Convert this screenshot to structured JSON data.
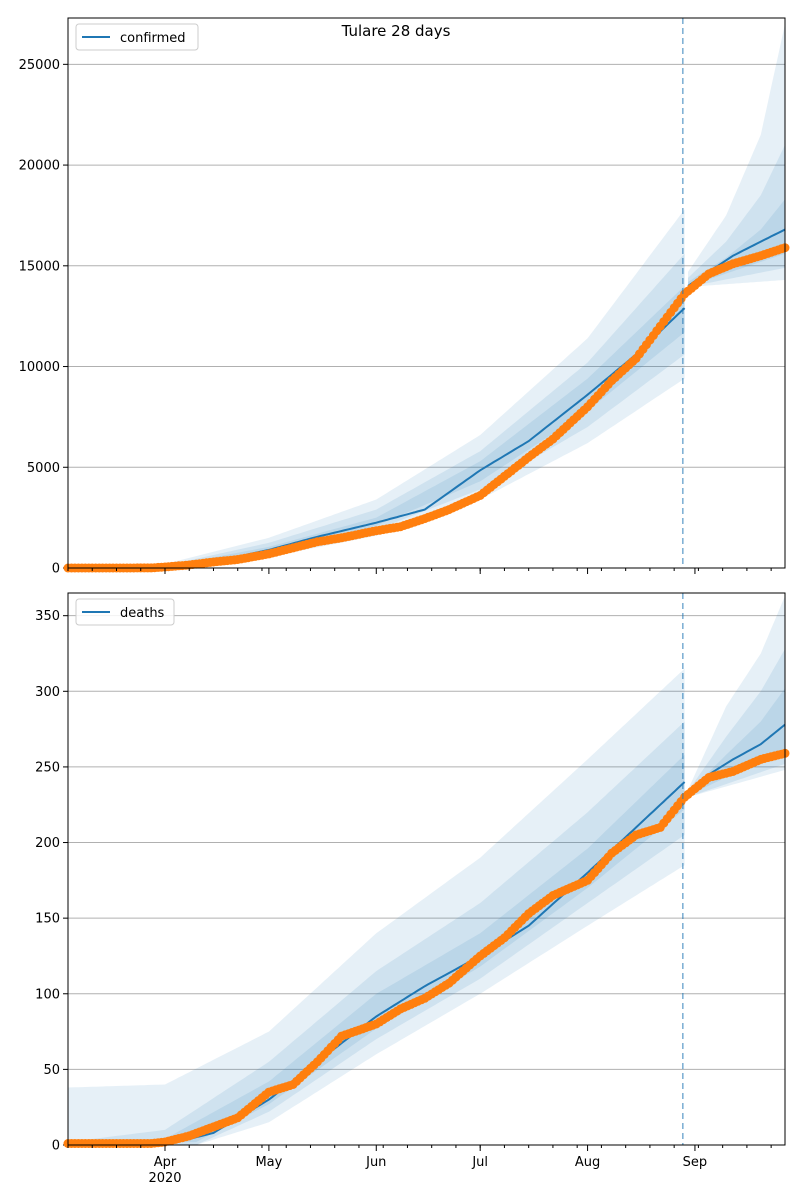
{
  "figure": {
    "title": "Tulare 28 days"
  },
  "colors": {
    "model_line": "#1f77b4",
    "observed": "#ff7f0e",
    "band": "#1f77b4",
    "grid": "#b0b0b0",
    "cutoff_line": "#1f77b4"
  },
  "chart_data": [
    {
      "type": "line",
      "title": "Tulare 28 days",
      "xlabel": "",
      "ylabel": "",
      "x_ticks": [
        {
          "date": "2020-04-01",
          "label": "Apr",
          "year_label": "2020"
        },
        {
          "date": "2020-05-01",
          "label": "May"
        },
        {
          "date": "2020-06-01",
          "label": "Jun"
        },
        {
          "date": "2020-07-01",
          "label": "Jul"
        },
        {
          "date": "2020-08-01",
          "label": "Aug"
        },
        {
          "date": "2020-09-01",
          "label": "Sep"
        }
      ],
      "x_range": [
        "2020-03-04",
        "2020-09-27"
      ],
      "ylim": [
        0,
        27300
      ],
      "y_ticks": [
        0,
        5000,
        10000,
        15000,
        20000,
        25000
      ],
      "grid": "horizontal",
      "legend": {
        "position": "top-left",
        "entries": [
          "confirmed"
        ]
      },
      "forecast_start": "2020-08-30",
      "series": [
        {
          "name": "confirmed",
          "kind": "model-median-line",
          "points": [
            [
              "2020-03-04",
              0
            ],
            [
              "2020-03-25",
              10
            ],
            [
              "2020-04-01",
              50
            ],
            [
              "2020-04-15",
              300
            ],
            [
              "2020-05-01",
              900
            ],
            [
              "2020-05-15",
              1550
            ],
            [
              "2020-06-01",
              2250
            ],
            [
              "2020-06-15",
              2900
            ],
            [
              "2020-07-01",
              4850
            ],
            [
              "2020-07-15",
              6300
            ],
            [
              "2020-08-01",
              8600
            ],
            [
              "2020-08-15",
              10600
            ],
            [
              "2020-08-29",
              12900
            ]
          ]
        },
        {
          "kind": "model-median-line-forecast",
          "points": [
            [
              "2020-08-30",
              14000
            ],
            [
              "2020-09-05",
              14700
            ],
            [
              "2020-09-12",
              15500
            ],
            [
              "2020-09-20",
              16200
            ],
            [
              "2020-09-27",
              16800
            ]
          ]
        },
        {
          "kind": "observed-points",
          "points": [
            [
              "2020-03-04",
              0
            ],
            [
              "2020-03-20",
              0
            ],
            [
              "2020-03-28",
              5
            ],
            [
              "2020-04-01",
              50
            ],
            [
              "2020-04-08",
              150
            ],
            [
              "2020-04-15",
              300
            ],
            [
              "2020-04-22",
              420
            ],
            [
              "2020-05-01",
              700
            ],
            [
              "2020-05-08",
              1000
            ],
            [
              "2020-05-15",
              1300
            ],
            [
              "2020-05-22",
              1500
            ],
            [
              "2020-06-01",
              1850
            ],
            [
              "2020-06-08",
              2050
            ],
            [
              "2020-06-15",
              2450
            ],
            [
              "2020-06-22",
              2900
            ],
            [
              "2020-07-01",
              3600
            ],
            [
              "2020-07-08",
              4550
            ],
            [
              "2020-07-15",
              5500
            ],
            [
              "2020-07-22",
              6400
            ],
            [
              "2020-08-01",
              8000
            ],
            [
              "2020-08-08",
              9300
            ],
            [
              "2020-08-15",
              10400
            ],
            [
              "2020-08-22",
              12000
            ],
            [
              "2020-08-29",
              13600
            ],
            [
              "2020-09-05",
              14600
            ],
            [
              "2020-09-12",
              15100
            ],
            [
              "2020-09-20",
              15500
            ],
            [
              "2020-09-27",
              15900
            ]
          ]
        }
      ],
      "bands": [
        {
          "level": "outer",
          "lower": [
            [
              "2020-03-04",
              0
            ],
            [
              "2020-04-01",
              0
            ],
            [
              "2020-05-01",
              550
            ],
            [
              "2020-06-01",
              1600
            ],
            [
              "2020-07-01",
              3400
            ],
            [
              "2020-08-01",
              6200
            ],
            [
              "2020-08-29",
              9400
            ],
            [
              "2020-08-30",
              13950
            ],
            [
              "2020-09-27",
              14300
            ]
          ],
          "upper": [
            [
              "2020-03-04",
              0
            ],
            [
              "2020-04-01",
              200
            ],
            [
              "2020-05-01",
              1500
            ],
            [
              "2020-06-01",
              3400
            ],
            [
              "2020-07-01",
              6600
            ],
            [
              "2020-08-01",
              11400
            ],
            [
              "2020-08-29",
              17800
            ],
            [
              "2020-08-30",
              14700
            ],
            [
              "2020-09-10",
              17500
            ],
            [
              "2020-09-20",
              21500
            ],
            [
              "2020-09-27",
              27000
            ]
          ]
        },
        {
          "level": "middle",
          "lower": [
            [
              "2020-03-04",
              0
            ],
            [
              "2020-04-01",
              20
            ],
            [
              "2020-05-01",
              700
            ],
            [
              "2020-06-01",
              1900
            ],
            [
              "2020-07-01",
              3900
            ],
            [
              "2020-08-01",
              7000
            ],
            [
              "2020-08-29",
              10600
            ],
            [
              "2020-08-30",
              13950
            ],
            [
              "2020-09-27",
              14900
            ]
          ],
          "upper": [
            [
              "2020-03-04",
              0
            ],
            [
              "2020-04-01",
              120
            ],
            [
              "2020-05-01",
              1250
            ],
            [
              "2020-06-01",
              2900
            ],
            [
              "2020-07-01",
              5800
            ],
            [
              "2020-08-01",
              10200
            ],
            [
              "2020-08-29",
              15600
            ],
            [
              "2020-08-30",
              14400
            ],
            [
              "2020-09-10",
              16200
            ],
            [
              "2020-09-20",
              18500
            ],
            [
              "2020-09-27",
              21000
            ]
          ]
        },
        {
          "level": "inner",
          "lower": [
            [
              "2020-03-04",
              0
            ],
            [
              "2020-04-01",
              30
            ],
            [
              "2020-05-01",
              800
            ],
            [
              "2020-06-01",
              2100
            ],
            [
              "2020-07-01",
              4300
            ],
            [
              "2020-08-01",
              7800
            ],
            [
              "2020-08-29",
              11700
            ],
            [
              "2020-08-30",
              13980
            ],
            [
              "2020-09-27",
              15600
            ]
          ],
          "upper": [
            [
              "2020-03-04",
              0
            ],
            [
              "2020-04-01",
              80
            ],
            [
              "2020-05-01",
              1050
            ],
            [
              "2020-06-01",
              2500
            ],
            [
              "2020-07-01",
              5300
            ],
            [
              "2020-08-01",
              9400
            ],
            [
              "2020-08-29",
              14000
            ],
            [
              "2020-08-30",
              14200
            ],
            [
              "2020-09-10",
              15400
            ],
            [
              "2020-09-20",
              16800
            ],
            [
              "2020-09-27",
              18300
            ]
          ]
        }
      ]
    },
    {
      "type": "line",
      "xlabel": "",
      "ylabel": "",
      "x_ticks": [
        {
          "date": "2020-04-01",
          "label": "Apr",
          "year_label": "2020"
        },
        {
          "date": "2020-05-01",
          "label": "May"
        },
        {
          "date": "2020-06-01",
          "label": "Jun"
        },
        {
          "date": "2020-07-01",
          "label": "Jul"
        },
        {
          "date": "2020-08-01",
          "label": "Aug"
        },
        {
          "date": "2020-09-01",
          "label": "Sep"
        }
      ],
      "x_range": [
        "2020-03-04",
        "2020-09-27"
      ],
      "ylim": [
        0,
        365
      ],
      "y_ticks": [
        0,
        50,
        100,
        150,
        200,
        250,
        300,
        350
      ],
      "grid": "horizontal",
      "legend": {
        "position": "top-left",
        "entries": [
          "deaths"
        ]
      },
      "forecast_start": "2020-08-30",
      "series": [
        {
          "name": "deaths",
          "kind": "model-median-line",
          "points": [
            [
              "2020-03-04",
              0
            ],
            [
              "2020-04-01",
              0
            ],
            [
              "2020-04-15",
              8
            ],
            [
              "2020-05-01",
              30
            ],
            [
              "2020-05-15",
              55
            ],
            [
              "2020-06-01",
              85
            ],
            [
              "2020-06-15",
              105
            ],
            [
              "2020-07-01",
              125
            ],
            [
              "2020-07-15",
              145
            ],
            [
              "2020-08-01",
              180
            ],
            [
              "2020-08-15",
              210
            ],
            [
              "2020-08-29",
              240
            ]
          ]
        },
        {
          "kind": "model-median-line-forecast",
          "points": [
            [
              "2020-08-30",
              232
            ],
            [
              "2020-09-05",
              245
            ],
            [
              "2020-09-12",
              255
            ],
            [
              "2020-09-20",
              265
            ],
            [
              "2020-09-27",
              278
            ]
          ]
        },
        {
          "kind": "observed-points",
          "points": [
            [
              "2020-03-04",
              1
            ],
            [
              "2020-03-28",
              1
            ],
            [
              "2020-04-01",
              2
            ],
            [
              "2020-04-08",
              6
            ],
            [
              "2020-04-15",
              12
            ],
            [
              "2020-04-22",
              18
            ],
            [
              "2020-05-01",
              35
            ],
            [
              "2020-05-08",
              40
            ],
            [
              "2020-05-15",
              55
            ],
            [
              "2020-05-22",
              72
            ],
            [
              "2020-06-01",
              80
            ],
            [
              "2020-06-08",
              90
            ],
            [
              "2020-06-15",
              97
            ],
            [
              "2020-06-22",
              107
            ],
            [
              "2020-07-01",
              125
            ],
            [
              "2020-07-08",
              137
            ],
            [
              "2020-07-15",
              153
            ],
            [
              "2020-07-22",
              165
            ],
            [
              "2020-08-01",
              175
            ],
            [
              "2020-08-08",
              193
            ],
            [
              "2020-08-15",
              205
            ],
            [
              "2020-08-22",
              210
            ],
            [
              "2020-08-29",
              230
            ],
            [
              "2020-09-05",
              243
            ],
            [
              "2020-09-12",
              247
            ],
            [
              "2020-09-20",
              255
            ],
            [
              "2020-09-27",
              259
            ]
          ]
        }
      ],
      "bands": [
        {
          "level": "outer",
          "lower": [
            [
              "2020-03-04",
              0
            ],
            [
              "2020-04-10",
              0
            ],
            [
              "2020-05-01",
              15
            ],
            [
              "2020-06-01",
              60
            ],
            [
              "2020-07-01",
              100
            ],
            [
              "2020-08-01",
              145
            ],
            [
              "2020-08-29",
              185
            ],
            [
              "2020-08-30",
              230
            ],
            [
              "2020-09-27",
              248
            ]
          ],
          "upper": [
            [
              "2020-03-04",
              38
            ],
            [
              "2020-04-01",
              40
            ],
            [
              "2020-05-01",
              75
            ],
            [
              "2020-06-01",
              140
            ],
            [
              "2020-07-01",
              190
            ],
            [
              "2020-08-01",
              255
            ],
            [
              "2020-08-29",
              315
            ],
            [
              "2020-08-30",
              235
            ],
            [
              "2020-09-10",
              290
            ],
            [
              "2020-09-20",
              325
            ],
            [
              "2020-09-27",
              363
            ]
          ]
        },
        {
          "level": "middle",
          "lower": [
            [
              "2020-03-04",
              0
            ],
            [
              "2020-04-10",
              0
            ],
            [
              "2020-05-01",
              22
            ],
            [
              "2020-06-01",
              70
            ],
            [
              "2020-07-01",
              110
            ],
            [
              "2020-08-01",
              160
            ],
            [
              "2020-08-29",
              205
            ],
            [
              "2020-08-30",
              230
            ],
            [
              "2020-09-27",
              252
            ]
          ],
          "upper": [
            [
              "2020-03-04",
              2
            ],
            [
              "2020-04-01",
              10
            ],
            [
              "2020-05-01",
              55
            ],
            [
              "2020-06-01",
              115
            ],
            [
              "2020-07-01",
              160
            ],
            [
              "2020-08-01",
              220
            ],
            [
              "2020-08-29",
              280
            ],
            [
              "2020-08-30",
              234
            ],
            [
              "2020-09-10",
              270
            ],
            [
              "2020-09-20",
              300
            ],
            [
              "2020-09-27",
              328
            ]
          ]
        },
        {
          "level": "inner",
          "lower": [
            [
              "2020-03-04",
              0
            ],
            [
              "2020-04-10",
              2
            ],
            [
              "2020-05-01",
              27
            ],
            [
              "2020-06-01",
              77
            ],
            [
              "2020-07-01",
              118
            ],
            [
              "2020-08-01",
              170
            ],
            [
              "2020-08-29",
              222
            ],
            [
              "2020-08-30",
              231
            ],
            [
              "2020-09-27",
              262
            ]
          ],
          "upper": [
            [
              "2020-03-04",
              0
            ],
            [
              "2020-04-01",
              4
            ],
            [
              "2020-05-01",
              42
            ],
            [
              "2020-06-01",
              100
            ],
            [
              "2020-07-01",
              140
            ],
            [
              "2020-08-01",
              196
            ],
            [
              "2020-08-29",
              258
            ],
            [
              "2020-08-30",
              233
            ],
            [
              "2020-09-10",
              258
            ],
            [
              "2020-09-20",
              280
            ],
            [
              "2020-09-27",
              302
            ]
          ]
        }
      ]
    }
  ]
}
